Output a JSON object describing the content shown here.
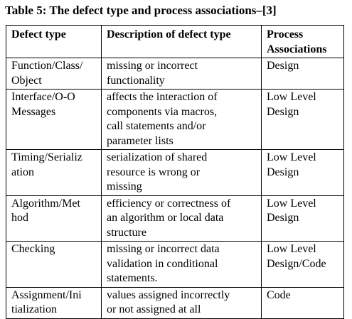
{
  "caption": "Table 5: The defect type and process associations–[3]",
  "table": {
    "headers": {
      "defect_type": "Defect type",
      "description": "Description of defect type",
      "process": "Process\nAssociations"
    },
    "rows": [
      {
        "defect_type": "Function/Class/\nObject",
        "description": "missing or incorrect\nfunctionality",
        "process": "Design"
      },
      {
        "defect_type": "Interface/O-O\nMessages",
        "description": "affects the interaction of\ncomponents via macros,\ncall statements and/or\nparameter lists",
        "process": "Low Level\nDesign"
      },
      {
        "defect_type": "Timing/Serializ\nation",
        "description": "serialization of shared\nresource is wrong or\nmissing",
        "process": "Low Level\nDesign"
      },
      {
        "defect_type": "Algorithm/Met\nhod",
        "description": "efficiency or correctness of\nan algorithm or local data\nstructure",
        "process": "Low Level\nDesign"
      },
      {
        "defect_type": "Checking",
        "description": "missing or incorrect data\nvalidation in conditional\nstatements.",
        "process": "Low Level\nDesign/Code"
      },
      {
        "defect_type": "Assignment/Ini\ntialization",
        "description": "values assigned incorrectly\nor not assigned at all",
        "process": "Code"
      }
    ]
  }
}
